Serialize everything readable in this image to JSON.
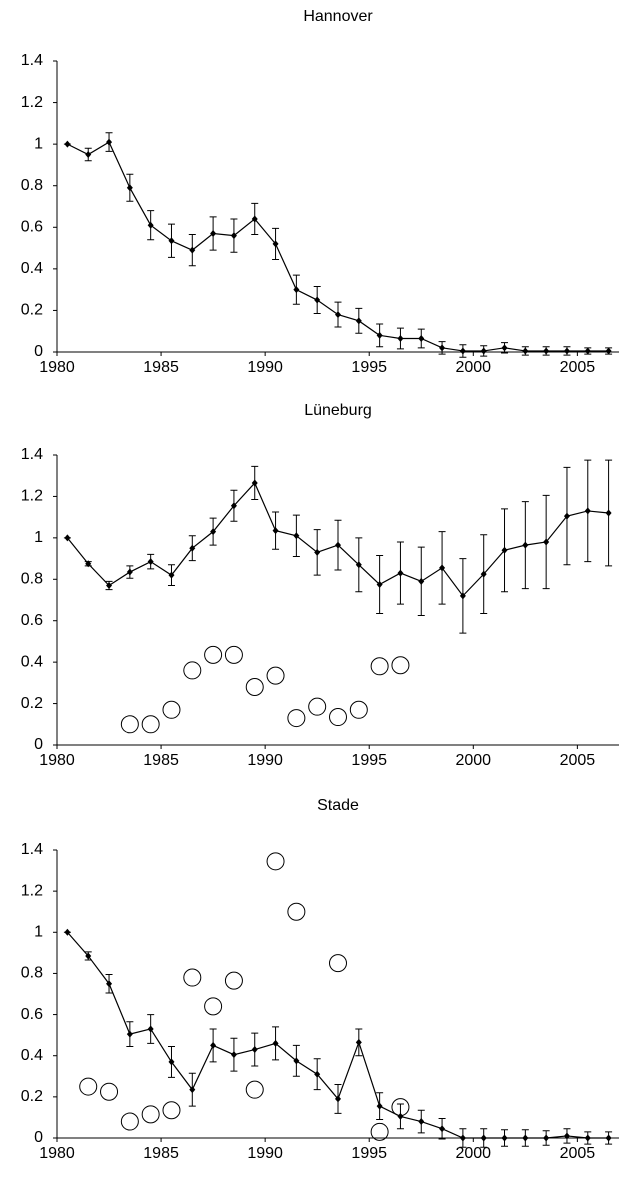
{
  "chart_data": [
    {
      "type": "line",
      "title": "Hannover",
      "xlim": [
        1980,
        2007
      ],
      "ylim": [
        0,
        1.4
      ],
      "xticks": [
        1980,
        1985,
        1990,
        1995,
        2000,
        2005
      ],
      "yticks": [
        0,
        0.2,
        0.4,
        0.6,
        0.8,
        1,
        1.2,
        1.4
      ],
      "series": [
        {
          "color": "#000000",
          "marker": "diamond",
          "x": [
            1980.5,
            1981.5,
            1982.5,
            1983.5,
            1984.5,
            1985.5,
            1986.5,
            1987.5,
            1988.5,
            1989.5,
            1990.5,
            1991.5,
            1992.5,
            1993.5,
            1994.5,
            1995.5,
            1996.5,
            1997.5,
            1998.5,
            1999.5,
            2000.5,
            2001.5,
            2002.5,
            2003.5,
            2004.5,
            2005.5,
            2006.5
          ],
          "values": [
            1,
            0.95,
            1.01,
            0.79,
            0.61,
            0.535,
            0.49,
            0.57,
            0.56,
            0.64,
            0.52,
            0.3,
            0.25,
            0.18,
            0.15,
            0.08,
            0.065,
            0.065,
            0.02,
            0.005,
            0.005,
            0.02,
            0.005,
            0.005,
            0.005,
            0.005,
            0.005
          ],
          "errors": [
            0,
            0.03,
            0.045,
            0.065,
            0.07,
            0.08,
            0.075,
            0.08,
            0.08,
            0.075,
            0.075,
            0.07,
            0.065,
            0.06,
            0.06,
            0.055,
            0.05,
            0.045,
            0.03,
            0.03,
            0.025,
            0.025,
            0.02,
            0.02,
            0.02,
            0.015,
            0.015
          ]
        }
      ]
    },
    {
      "type": "line",
      "title": "Lüneburg",
      "xlim": [
        1980,
        2007
      ],
      "ylim": [
        0,
        1.4
      ],
      "xticks": [
        1980,
        1985,
        1990,
        1995,
        2000,
        2005
      ],
      "yticks": [
        0,
        0.2,
        0.4,
        0.6,
        0.8,
        1,
        1.2,
        1.4
      ],
      "series": [
        {
          "color": "#000000",
          "marker": "diamond",
          "x": [
            1980.5,
            1981.5,
            1982.5,
            1983.5,
            1984.5,
            1985.5,
            1986.5,
            1987.5,
            1988.5,
            1989.5,
            1990.5,
            1991.5,
            1992.5,
            1993.5,
            1994.5,
            1995.5,
            1996.5,
            1997.5,
            1998.5,
            1999.5,
            2000.5,
            2001.5,
            2002.5,
            2003.5,
            2004.5,
            2005.5,
            2006.5
          ],
          "values": [
            1,
            0.875,
            0.77,
            0.835,
            0.885,
            0.82,
            0.95,
            1.03,
            1.155,
            1.265,
            1.035,
            1.01,
            0.93,
            0.965,
            0.87,
            0.775,
            0.83,
            0.79,
            0.855,
            0.72,
            0.825,
            0.94,
            0.965,
            0.98,
            1.105,
            1.13,
            1.12
          ],
          "errors": [
            0,
            0.01,
            0.02,
            0.03,
            0.035,
            0.05,
            0.06,
            0.065,
            0.075,
            0.08,
            0.09,
            0.1,
            0.11,
            0.12,
            0.13,
            0.14,
            0.15,
            0.165,
            0.175,
            0.18,
            0.19,
            0.2,
            0.21,
            0.225,
            0.235,
            0.245,
            0.255
          ]
        },
        {
          "color": "#000000",
          "marker": "circle",
          "x": [
            1983.5,
            1984.5,
            1985.5,
            1986.5,
            1987.5,
            1988.5,
            1989.5,
            1990.5,
            1991.5,
            1992.5,
            1993.5,
            1994.5,
            1995.5,
            1996.5
          ],
          "values": [
            0.1,
            0.1,
            0.17,
            0.36,
            0.435,
            0.435,
            0.28,
            0.335,
            0.13,
            0.185,
            0.135,
            0.17,
            0.38,
            0.385
          ]
        }
      ]
    },
    {
      "type": "line",
      "title": "Stade",
      "xlim": [
        1980,
        2007
      ],
      "ylim": [
        0,
        1.4
      ],
      "xticks": [
        1980,
        1985,
        1990,
        1995,
        2000,
        2005
      ],
      "yticks": [
        0,
        0.2,
        0.4,
        0.6,
        0.8,
        1,
        1.2,
        1.4
      ],
      "series": [
        {
          "color": "#000000",
          "marker": "diamond",
          "x": [
            1980.5,
            1981.5,
            1982.5,
            1983.5,
            1984.5,
            1985.5,
            1986.5,
            1987.5,
            1988.5,
            1989.5,
            1990.5,
            1991.5,
            1992.5,
            1993.5,
            1994.5,
            1995.5,
            1996.5,
            1997.5,
            1998.5,
            1999.5,
            2000.5,
            2001.5,
            2002.5,
            2003.5,
            2004.5,
            2005.5,
            2006.5
          ],
          "values": [
            1,
            0.885,
            0.75,
            0.505,
            0.53,
            0.37,
            0.235,
            0.45,
            0.405,
            0.43,
            0.46,
            0.375,
            0.31,
            0.19,
            0.465,
            0.155,
            0.105,
            0.08,
            0.045,
            0,
            0,
            0,
            0,
            0,
            0.01,
            0,
            0
          ],
          "errors": [
            0,
            0.02,
            0.045,
            0.06,
            0.07,
            0.075,
            0.08,
            0.08,
            0.08,
            0.08,
            0.08,
            0.075,
            0.075,
            0.07,
            0.065,
            0.065,
            0.06,
            0.055,
            0.05,
            0.045,
            0.045,
            0.04,
            0.04,
            0.035,
            0.035,
            0.03,
            0.03
          ]
        },
        {
          "color": "#000000",
          "marker": "circle",
          "x": [
            1981.5,
            1982.5,
            1983.5,
            1984.5,
            1985.5,
            1986.5,
            1987.5,
            1988.5,
            1989.5,
            1990.5,
            1991.5,
            1993.5,
            1995.5,
            1996.5
          ],
          "values": [
            0.25,
            0.225,
            0.08,
            0.115,
            0.135,
            0.78,
            0.64,
            0.765,
            0.235,
            1.345,
            1.1,
            0.85,
            0.03,
            0.15
          ]
        }
      ]
    }
  ]
}
